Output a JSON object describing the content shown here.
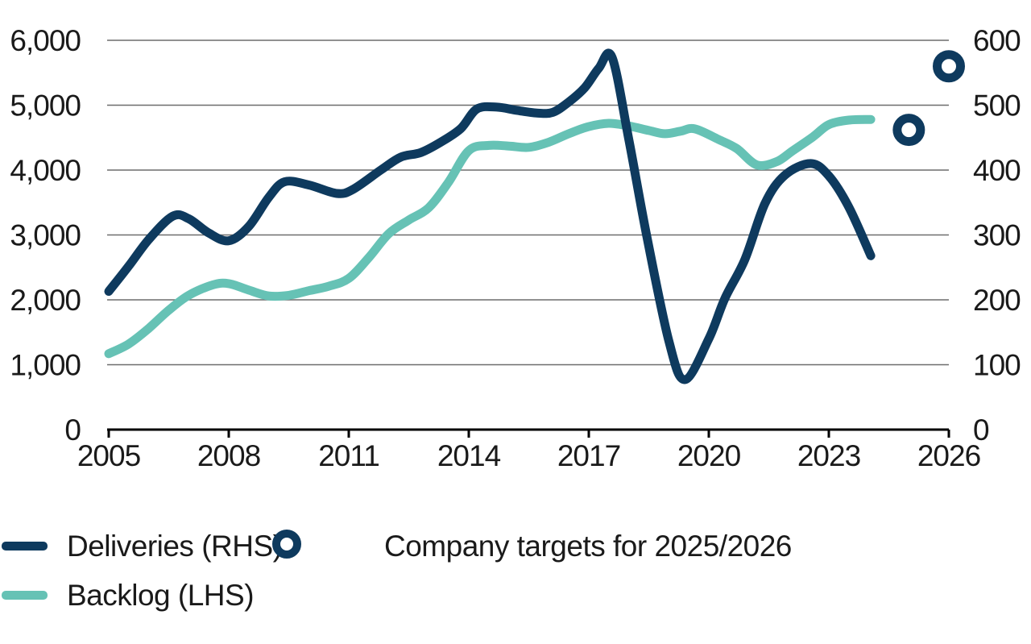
{
  "colors": {
    "navy": "#0E3A5E",
    "teal": "#66C2B5",
    "gridline": "#6d6d6d",
    "axis": "#000000",
    "text": "#1a1a1a",
    "background": "#ffffff"
  },
  "chart_data": {
    "type": "line",
    "title": "",
    "grid": "horizontal",
    "legend_position": "bottom-left",
    "x_axis": {
      "range": [
        2005,
        2026
      ],
      "tick_labels": [
        "2005",
        "2008",
        "2011",
        "2014",
        "2017",
        "2020",
        "2023",
        "2026"
      ],
      "tick_years": [
        2005,
        2008,
        2011,
        2014,
        2017,
        2020,
        2023,
        2026
      ]
    },
    "left_axis": {
      "range": [
        0,
        6000
      ],
      "tick_labels": [
        "0",
        "1,000",
        "2,000",
        "3,000",
        "4,000",
        "5,000",
        "6,000"
      ],
      "tick_values": [
        0,
        1000,
        2000,
        3000,
        4000,
        5000,
        6000
      ]
    },
    "right_axis": {
      "range": [
        0,
        600
      ],
      "tick_labels": [
        "0",
        "100",
        "200",
        "300",
        "400",
        "500",
        "600"
      ],
      "tick_values": [
        0,
        100,
        200,
        300,
        400,
        500,
        600
      ]
    },
    "series": [
      {
        "name": "Deliveries (RHS)",
        "axis": "right",
        "color": "#0E3A5E",
        "points": [
          [
            2005,
            213
          ],
          [
            2005.5,
            252
          ],
          [
            2006,
            293
          ],
          [
            2006.6,
            329
          ],
          [
            2007,
            325
          ],
          [
            2007.5,
            303
          ],
          [
            2008,
            291
          ],
          [
            2008.5,
            313
          ],
          [
            2009,
            358
          ],
          [
            2009.4,
            382
          ],
          [
            2010,
            377
          ],
          [
            2010.7,
            364
          ],
          [
            2011.1,
            370
          ],
          [
            2011.8,
            400
          ],
          [
            2012.3,
            420
          ],
          [
            2012.8,
            427
          ],
          [
            2013.3,
            443
          ],
          [
            2013.8,
            464
          ],
          [
            2014.2,
            494
          ],
          [
            2014.7,
            497
          ],
          [
            2015.2,
            492
          ],
          [
            2015.7,
            488
          ],
          [
            2016.1,
            489
          ],
          [
            2016.5,
            505
          ],
          [
            2016.9,
            527
          ],
          [
            2017.25,
            557
          ],
          [
            2017.58,
            574
          ],
          [
            2018,
            447
          ],
          [
            2018.45,
            298
          ],
          [
            2019,
            137
          ],
          [
            2019.4,
            77
          ],
          [
            2020,
            140
          ],
          [
            2020.4,
            202
          ],
          [
            2020.9,
            262
          ],
          [
            2021.4,
            348
          ],
          [
            2021.9,
            392
          ],
          [
            2022.55,
            410
          ],
          [
            2023,
            391
          ],
          [
            2023.5,
            343
          ],
          [
            2024.05,
            268
          ]
        ]
      },
      {
        "name": "Backlog (LHS)",
        "axis": "left",
        "color": "#66C2B5",
        "points": [
          [
            2005,
            1170
          ],
          [
            2005.5,
            1320
          ],
          [
            2006,
            1560
          ],
          [
            2006.5,
            1840
          ],
          [
            2007,
            2070
          ],
          [
            2007.6,
            2230
          ],
          [
            2008,
            2250
          ],
          [
            2008.5,
            2150
          ],
          [
            2009,
            2060
          ],
          [
            2009.5,
            2070
          ],
          [
            2010,
            2140
          ],
          [
            2010.5,
            2210
          ],
          [
            2011,
            2330
          ],
          [
            2011.5,
            2650
          ],
          [
            2012,
            3020
          ],
          [
            2012.5,
            3230
          ],
          [
            2013,
            3420
          ],
          [
            2013.5,
            3820
          ],
          [
            2014,
            4300
          ],
          [
            2014.5,
            4380
          ],
          [
            2015,
            4370
          ],
          [
            2015.5,
            4350
          ],
          [
            2016,
            4430
          ],
          [
            2016.5,
            4560
          ],
          [
            2017,
            4670
          ],
          [
            2017.5,
            4720
          ],
          [
            2018,
            4680
          ],
          [
            2018.5,
            4610
          ],
          [
            2018.9,
            4560
          ],
          [
            2019.3,
            4600
          ],
          [
            2019.65,
            4635
          ],
          [
            2020.25,
            4470
          ],
          [
            2020.7,
            4330
          ],
          [
            2021.2,
            4080
          ],
          [
            2021.7,
            4130
          ],
          [
            2022.1,
            4300
          ],
          [
            2022.6,
            4510
          ],
          [
            2023,
            4700
          ],
          [
            2023.5,
            4770
          ],
          [
            2024.05,
            4780
          ]
        ]
      }
    ],
    "scatter": [
      {
        "name": "Company targets for 2025/2026",
        "axis": "right",
        "color": "#0E3A5E",
        "marker": "open-circle",
        "points": [
          [
            2025,
            462
          ],
          [
            2026,
            560
          ]
        ]
      }
    ]
  }
}
